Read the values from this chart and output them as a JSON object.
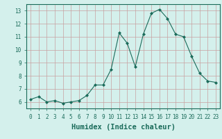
{
  "x": [
    0,
    1,
    2,
    3,
    4,
    5,
    6,
    7,
    8,
    9,
    10,
    11,
    12,
    13,
    14,
    15,
    16,
    17,
    18,
    19,
    20,
    21,
    22,
    23
  ],
  "y": [
    6.2,
    6.4,
    6.0,
    6.1,
    5.9,
    6.0,
    6.1,
    6.5,
    7.3,
    7.3,
    8.5,
    11.3,
    10.5,
    8.7,
    11.2,
    12.8,
    13.1,
    12.4,
    11.2,
    11.0,
    9.5,
    8.2,
    7.6,
    7.5
  ],
  "line_color": "#1a6b5a",
  "marker": "D",
  "marker_size": 2.0,
  "bg_color": "#d4f0ec",
  "grid_color": "#c8a0a0",
  "plot_bg_color": "#d4f0ec",
  "xlabel": "Humidex (Indice chaleur)",
  "ylim": [
    5.5,
    13.5
  ],
  "xlim": [
    -0.5,
    23.5
  ],
  "yticks": [
    6,
    7,
    8,
    9,
    10,
    11,
    12,
    13
  ],
  "xticks": [
    0,
    1,
    2,
    3,
    4,
    5,
    6,
    7,
    8,
    9,
    10,
    11,
    12,
    13,
    14,
    15,
    16,
    17,
    18,
    19,
    20,
    21,
    22,
    23
  ],
  "tick_label_fontsize": 5.5,
  "xlabel_fontsize": 7.5,
  "spine_color": "#1a6b5a",
  "linewidth": 0.8
}
